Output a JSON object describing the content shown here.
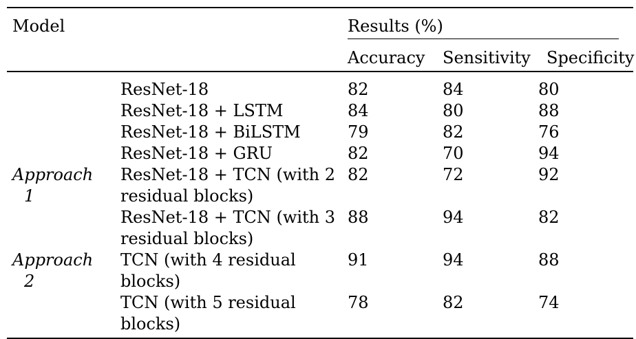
{
  "colors": {
    "background": "#ffffff",
    "text": "#000000",
    "rule": "#000000"
  },
  "table": {
    "header": {
      "model": "Model",
      "results": "Results (%)",
      "columns": [
        "Accuracy",
        "Sensitivity",
        "Specificity"
      ]
    },
    "groups": [
      {
        "label": "Approach 1",
        "label_line1": "Approach",
        "label_line2": "1",
        "rows": [
          {
            "model": "ResNet-18",
            "accuracy": "82",
            "sensitivity": "84",
            "specificity": "80"
          },
          {
            "model": "ResNet-18 + LSTM",
            "accuracy": "84",
            "sensitivity": "80",
            "specificity": "88"
          },
          {
            "model": "ResNet-18 + BiLSTM",
            "accuracy": "79",
            "sensitivity": "82",
            "specificity": "76"
          },
          {
            "model": "ResNet-18 + GRU",
            "accuracy": "82",
            "sensitivity": "70",
            "specificity": "94"
          },
          {
            "model": "ResNet-18 + TCN (with 2 residual blocks)",
            "accuracy": "82",
            "sensitivity": "72",
            "specificity": "92"
          },
          {
            "model": "ResNet-18 + TCN (with 3 residual blocks)",
            "accuracy": "88",
            "sensitivity": "94",
            "specificity": "82"
          }
        ]
      },
      {
        "label": "Approach 2",
        "label_line1": "Approach",
        "label_line2": "2",
        "rows": [
          {
            "model": "TCN (with 4 residual blocks)",
            "accuracy": "91",
            "sensitivity": "94",
            "specificity": "88"
          },
          {
            "model": "TCN (with 5 residual blocks)",
            "accuracy": "78",
            "sensitivity": "82",
            "specificity": "74"
          }
        ]
      }
    ]
  }
}
